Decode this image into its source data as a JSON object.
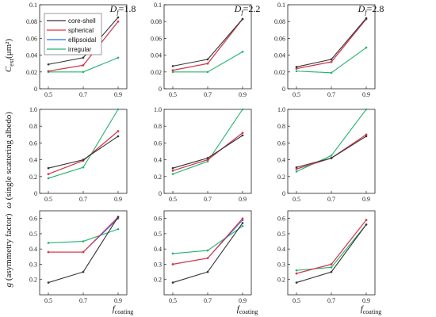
{
  "legend": {
    "entries": [
      {
        "label": "core-shell",
        "color": "#333333",
        "marker": "square"
      },
      {
        "label": "spherical",
        "color": "#e8323c",
        "marker": "circle"
      },
      {
        "label": "ellipsoidal",
        "color": "#2a6fe0",
        "marker": "triangle"
      },
      {
        "label": "irregular",
        "color": "#23b26d",
        "marker": "diamond"
      }
    ]
  },
  "columns": [
    {
      "d_symbol": "D",
      "d_sub": "f",
      "d_value": "=1.8"
    },
    {
      "d_symbol": "D",
      "d_sub": "f",
      "d_value": "=2.2"
    },
    {
      "d_symbol": "D",
      "d_sub": "f",
      "d_value": "=2.8"
    }
  ],
  "rows": [
    {
      "ylabel_main": "C",
      "ylabel_sub": "ext",
      "ylabel_unit": "(μm²)"
    },
    {
      "ylabel_main": "ω",
      "ylabel_sub": "",
      "ylabel_unit": " (single scattering albedo)"
    },
    {
      "ylabel_main": "g",
      "ylabel_sub": "",
      "ylabel_unit": " (asymmetry factor)"
    }
  ],
  "xlabel": {
    "main": "f",
    "sub": "coating"
  },
  "chart_data": [
    {
      "type": "line",
      "row": 0,
      "col": 0,
      "x": [
        0.5,
        0.7,
        0.9
      ],
      "xlim": [
        0.45,
        0.95
      ],
      "xticks": [
        "0.5",
        "0.7",
        "0.9"
      ],
      "ylim": [
        0,
        0.1
      ],
      "yticks": [
        "0",
        "0.02",
        "0.04",
        "0.06",
        "0.08",
        "0.1"
      ],
      "series": [
        {
          "name": "core-shell",
          "values": [
            0.029,
            0.037,
            0.085
          ]
        },
        {
          "name": "spherical",
          "values": [
            0.021,
            0.028,
            0.08
          ]
        },
        {
          "name": "ellipsoidal",
          "values": [
            0.021,
            0.028,
            0.08
          ]
        },
        {
          "name": "irregular",
          "values": [
            0.02,
            0.02,
            0.037
          ]
        }
      ]
    },
    {
      "type": "line",
      "row": 0,
      "col": 1,
      "x": [
        0.5,
        0.7,
        0.9
      ],
      "xlim": [
        0.45,
        0.95
      ],
      "xticks": [
        "0.5",
        "0.7",
        "0.9"
      ],
      "ylim": [
        0,
        0.1
      ],
      "yticks": [
        "0",
        "0.02",
        "0.04",
        "0.06",
        "0.08",
        "0.1"
      ],
      "series": [
        {
          "name": "core-shell",
          "values": [
            0.027,
            0.035,
            0.083
          ]
        },
        {
          "name": "spherical",
          "values": [
            0.022,
            0.03,
            0.083
          ]
        },
        {
          "name": "ellipsoidal",
          "values": [
            0.022,
            0.03,
            0.083
          ]
        },
        {
          "name": "irregular",
          "values": [
            0.02,
            0.02,
            0.044
          ]
        }
      ]
    },
    {
      "type": "line",
      "row": 0,
      "col": 2,
      "x": [
        0.5,
        0.7,
        0.9
      ],
      "xlim": [
        0.45,
        0.95
      ],
      "xticks": [
        "0.5",
        "0.7",
        "0.9"
      ],
      "ylim": [
        0,
        0.1
      ],
      "yticks": [
        "0",
        "0.02",
        "0.04",
        "0.06",
        "0.08",
        "0.1"
      ],
      "series": [
        {
          "name": "core-shell",
          "values": [
            0.026,
            0.035,
            0.084
          ]
        },
        {
          "name": "spherical",
          "values": [
            0.024,
            0.032,
            0.083
          ]
        },
        {
          "name": "ellipsoidal",
          "values": [
            0.024,
            0.032,
            0.083
          ]
        },
        {
          "name": "irregular",
          "values": [
            0.021,
            0.019,
            0.049
          ]
        }
      ]
    },
    {
      "type": "line",
      "row": 1,
      "col": 0,
      "x": [
        0.5,
        0.7,
        0.9
      ],
      "xlim": [
        0.45,
        0.95
      ],
      "xticks": [
        "0.5",
        "0.7",
        "0.9"
      ],
      "ylim": [
        0,
        1.0
      ],
      "yticks": [
        "0",
        "0.2",
        "0.4",
        "0.6",
        "0.8",
        "1.0"
      ],
      "series": [
        {
          "name": "core-shell",
          "values": [
            0.3,
            0.4,
            0.68
          ]
        },
        {
          "name": "spherical",
          "values": [
            0.23,
            0.39,
            0.74
          ]
        },
        {
          "name": "ellipsoidal",
          "values": [
            0.23,
            0.39,
            0.74
          ]
        },
        {
          "name": "irregular",
          "values": [
            0.18,
            0.31,
            1.0
          ]
        }
      ]
    },
    {
      "type": "line",
      "row": 1,
      "col": 1,
      "x": [
        0.5,
        0.7,
        0.9
      ],
      "xlim": [
        0.45,
        0.95
      ],
      "xticks": [
        "0.5",
        "0.7",
        "0.9"
      ],
      "ylim": [
        0,
        1.0
      ],
      "yticks": [
        "0",
        "0.2",
        "0.4",
        "0.6",
        "0.8",
        "1.0"
      ],
      "series": [
        {
          "name": "core-shell",
          "values": [
            0.3,
            0.42,
            0.69
          ]
        },
        {
          "name": "spherical",
          "values": [
            0.27,
            0.4,
            0.72
          ]
        },
        {
          "name": "ellipsoidal",
          "values": [
            0.27,
            0.4,
            0.72
          ]
        },
        {
          "name": "irregular",
          "values": [
            0.23,
            0.38,
            1.0
          ]
        }
      ]
    },
    {
      "type": "line",
      "row": 1,
      "col": 2,
      "x": [
        0.5,
        0.7,
        0.9
      ],
      "xlim": [
        0.45,
        0.95
      ],
      "xticks": [
        "0.5",
        "0.7",
        "0.9"
      ],
      "ylim": [
        0,
        1.0
      ],
      "yticks": [
        "0",
        "0.2",
        "0.4",
        "0.6",
        "0.8",
        "1.0"
      ],
      "series": [
        {
          "name": "core-shell",
          "values": [
            0.31,
            0.42,
            0.68
          ]
        },
        {
          "name": "spherical",
          "values": [
            0.29,
            0.42,
            0.7
          ]
        },
        {
          "name": "ellipsoidal",
          "values": [
            0.29,
            0.42,
            0.7
          ]
        },
        {
          "name": "irregular",
          "values": [
            0.26,
            0.45,
            1.0
          ]
        }
      ]
    },
    {
      "type": "line",
      "row": 2,
      "col": 0,
      "x": [
        0.5,
        0.7,
        0.9
      ],
      "xlim": [
        0.45,
        0.95
      ],
      "xticks": [
        "0.5",
        "0.7",
        "0.9"
      ],
      "ylim": [
        0.1,
        0.65
      ],
      "yticks": [
        "0.2",
        "0.3",
        "0.4",
        "0.5",
        "0.6"
      ],
      "series": [
        {
          "name": "core-shell",
          "values": [
            0.18,
            0.25,
            0.61
          ]
        },
        {
          "name": "spherical",
          "values": [
            0.38,
            0.38,
            0.61
          ]
        },
        {
          "name": "ellipsoidal",
          "values": [
            0.38,
            0.38,
            0.6
          ]
        },
        {
          "name": "irregular",
          "values": [
            0.44,
            0.45,
            0.53
          ]
        }
      ]
    },
    {
      "type": "line",
      "row": 2,
      "col": 1,
      "x": [
        0.5,
        0.7,
        0.9
      ],
      "xlim": [
        0.45,
        0.95
      ],
      "xticks": [
        "0.5",
        "0.7",
        "0.9"
      ],
      "ylim": [
        0.1,
        0.65
      ],
      "yticks": [
        "0.2",
        "0.3",
        "0.4",
        "0.5",
        "0.6"
      ],
      "series": [
        {
          "name": "core-shell",
          "values": [
            0.18,
            0.25,
            0.57
          ]
        },
        {
          "name": "spherical",
          "values": [
            0.3,
            0.34,
            0.6
          ]
        },
        {
          "name": "ellipsoidal",
          "values": [
            0.3,
            0.34,
            0.59
          ]
        },
        {
          "name": "irregular",
          "values": [
            0.37,
            0.39,
            0.55
          ]
        }
      ]
    },
    {
      "type": "line",
      "row": 2,
      "col": 2,
      "x": [
        0.5,
        0.7,
        0.9
      ],
      "xlim": [
        0.45,
        0.95
      ],
      "xticks": [
        "0.5",
        "0.7",
        "0.9"
      ],
      "ylim": [
        0.1,
        0.65
      ],
      "yticks": [
        "0.2",
        "0.3",
        "0.4",
        "0.5",
        "0.6"
      ],
      "series": [
        {
          "name": "core-shell",
          "values": [
            0.18,
            0.25,
            0.56
          ]
        },
        {
          "name": "spherical",
          "values": [
            0.24,
            0.3,
            0.59
          ]
        },
        {
          "name": "ellipsoidal",
          "values": [
            0.24,
            0.3,
            0.59
          ]
        },
        {
          "name": "irregular",
          "values": [
            0.26,
            0.28,
            0.56
          ]
        }
      ]
    }
  ]
}
